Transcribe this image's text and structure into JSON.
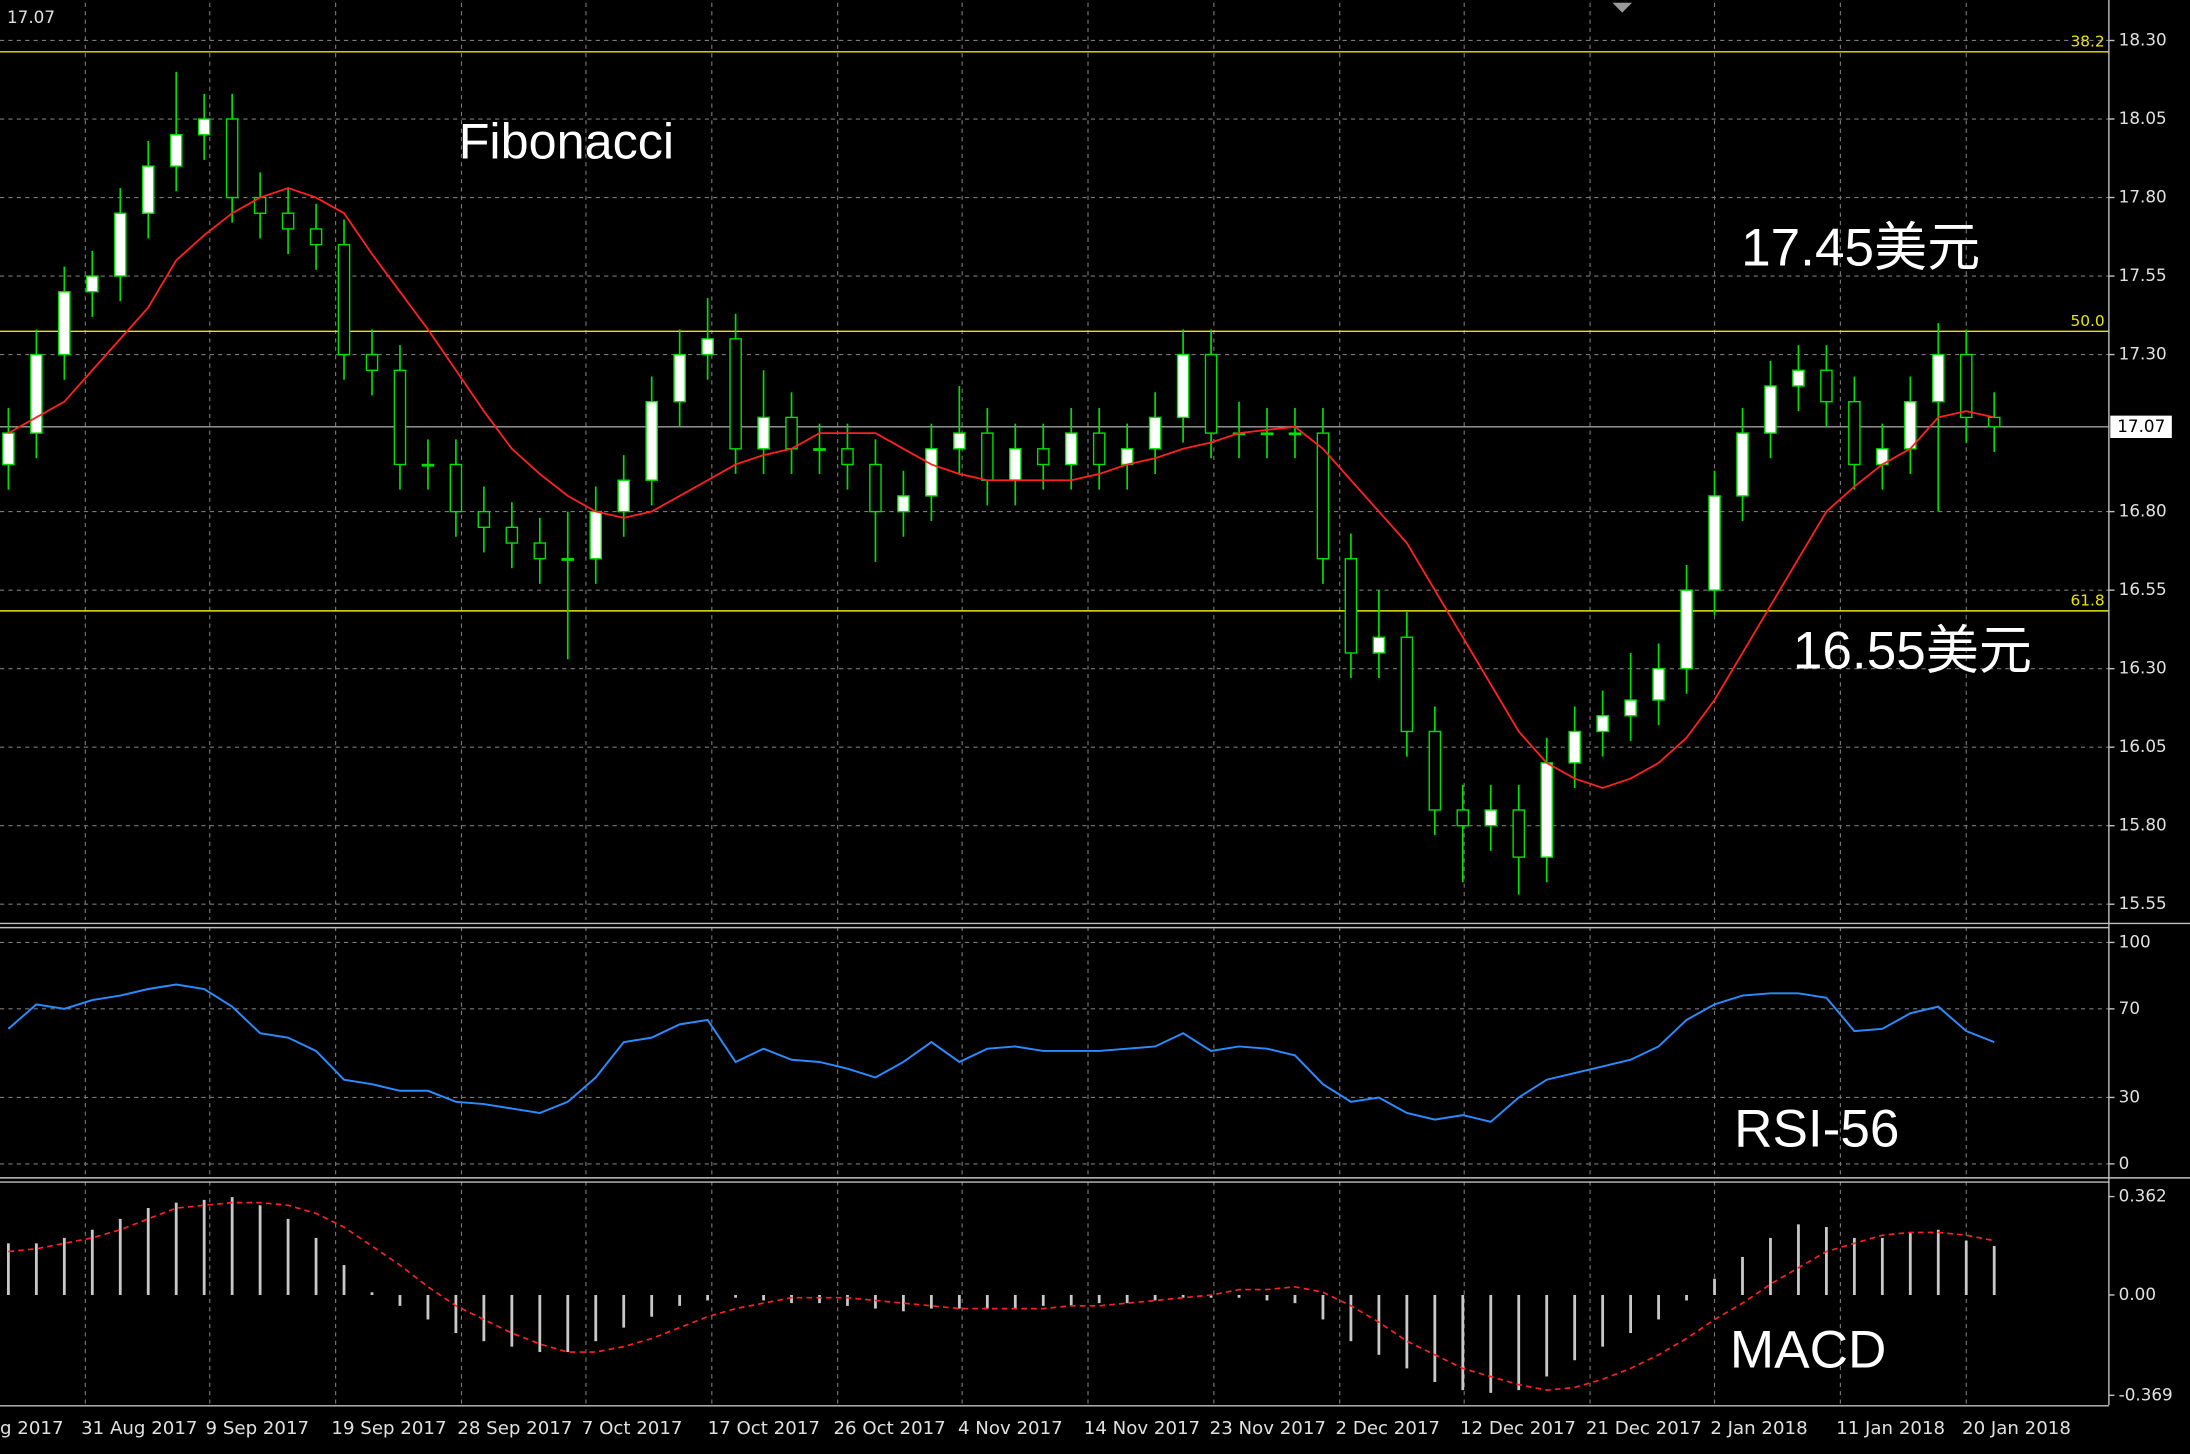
{
  "chart_data": [
    {
      "type": "candlestick",
      "open": [
        16.95,
        17.05,
        17.3,
        17.5,
        17.55,
        17.75,
        17.9,
        18.0,
        18.05,
        17.8,
        17.75,
        17.7,
        17.65,
        17.3,
        17.25,
        16.95,
        16.95,
        16.8,
        16.75,
        16.7,
        16.65,
        16.65,
        16.8,
        16.9,
        17.15,
        17.3,
        17.35,
        17.0,
        17.1,
        17.0,
        17.0,
        16.95,
        16.8,
        16.85,
        17.0,
        17.05,
        16.9,
        17.0,
        16.95,
        17.05,
        16.95,
        17.0,
        17.1,
        17.3,
        17.05,
        17.05,
        17.05,
        17.05,
        16.65,
        16.35,
        16.4,
        16.1,
        15.85,
        15.8,
        15.85,
        15.7,
        16.0,
        16.1,
        16.15,
        16.2,
        16.3,
        16.55,
        16.85,
        17.05,
        17.2,
        17.25,
        17.15,
        16.95,
        17.0,
        17.15,
        17.3,
        17.1
      ],
      "high": [
        17.13,
        17.38,
        17.58,
        17.63,
        17.83,
        17.98,
        18.2,
        18.13,
        18.13,
        17.88,
        17.83,
        17.78,
        17.73,
        17.38,
        17.33,
        17.03,
        17.03,
        16.88,
        16.83,
        16.78,
        16.8,
        16.88,
        16.98,
        17.23,
        17.38,
        17.48,
        17.43,
        17.25,
        17.18,
        17.08,
        17.08,
        17.03,
        16.93,
        17.08,
        17.2,
        17.13,
        17.08,
        17.08,
        17.13,
        17.13,
        17.08,
        17.18,
        17.38,
        17.38,
        17.15,
        17.13,
        17.13,
        17.13,
        16.73,
        16.55,
        16.48,
        16.18,
        15.93,
        15.93,
        15.93,
        16.08,
        16.18,
        16.23,
        16.35,
        16.38,
        16.63,
        16.93,
        17.13,
        17.28,
        17.33,
        17.33,
        17.23,
        17.08,
        17.23,
        17.4,
        17.38,
        17.18
      ],
      "low": [
        16.87,
        16.97,
        17.22,
        17.42,
        17.47,
        17.67,
        17.82,
        17.92,
        17.72,
        17.67,
        17.62,
        17.57,
        17.22,
        17.17,
        16.87,
        16.87,
        16.72,
        16.67,
        16.62,
        16.57,
        16.33,
        16.57,
        16.72,
        16.82,
        17.07,
        17.22,
        16.92,
        16.92,
        16.92,
        16.92,
        16.87,
        16.64,
        16.72,
        16.77,
        16.92,
        16.82,
        16.82,
        16.87,
        16.87,
        16.87,
        16.87,
        16.92,
        17.02,
        16.97,
        16.97,
        16.97,
        16.97,
        16.57,
        16.27,
        16.27,
        16.02,
        15.77,
        15.62,
        15.72,
        15.58,
        15.62,
        15.92,
        16.02,
        16.07,
        16.12,
        16.22,
        16.47,
        16.77,
        16.97,
        17.12,
        17.07,
        16.87,
        16.87,
        16.92,
        16.8,
        17.02,
        16.99
      ],
      "close": [
        17.05,
        17.3,
        17.5,
        17.55,
        17.75,
        17.9,
        18.0,
        18.05,
        17.8,
        17.75,
        17.7,
        17.65,
        17.3,
        17.25,
        16.95,
        16.95,
        16.8,
        16.75,
        16.7,
        16.65,
        16.65,
        16.8,
        16.9,
        17.15,
        17.3,
        17.35,
        17.0,
        17.1,
        17.0,
        17.0,
        16.95,
        16.8,
        16.85,
        17.0,
        17.05,
        16.9,
        17.0,
        16.95,
        17.05,
        16.95,
        17.0,
        17.1,
        17.3,
        17.05,
        17.05,
        17.05,
        17.05,
        16.65,
        16.35,
        16.4,
        16.1,
        15.85,
        15.8,
        15.85,
        15.7,
        16.0,
        16.1,
        16.15,
        16.2,
        16.3,
        16.55,
        16.85,
        17.05,
        17.2,
        17.25,
        17.15,
        16.95,
        17.0,
        17.15,
        17.3,
        17.1,
        17.07
      ],
      "up_color": "#ffffff",
      "down_color": "#000000",
      "wick_color": "#00e000",
      "ma": {
        "color": "#ff2020",
        "values": [
          17.05,
          17.1,
          17.15,
          17.25,
          17.35,
          17.45,
          17.6,
          17.68,
          17.75,
          17.8,
          17.83,
          17.8,
          17.75,
          17.62,
          17.5,
          17.38,
          17.25,
          17.12,
          17.0,
          16.92,
          16.85,
          16.8,
          16.78,
          16.8,
          16.85,
          16.9,
          16.95,
          16.98,
          17.0,
          17.05,
          17.05,
          17.05,
          17.0,
          16.95,
          16.92,
          16.9,
          16.9,
          16.9,
          16.9,
          16.92,
          16.95,
          16.97,
          17.0,
          17.02,
          17.05,
          17.06,
          17.07,
          17.0,
          16.9,
          16.8,
          16.7,
          16.55,
          16.4,
          16.25,
          16.1,
          16.0,
          15.95,
          15.92,
          15.95,
          16.0,
          16.08,
          16.2,
          16.35,
          16.5,
          16.65,
          16.8,
          16.88,
          16.95,
          17.0,
          17.1,
          17.12,
          17.1
        ]
      },
      "ylim": [
        15.5,
        18.42
      ],
      "yticks": [
        {
          "value": 18.3,
          "label": "18.30"
        },
        18.05,
        {
          "value": 17.8,
          "label": "17.80"
        },
        17.55,
        {
          "value": 17.3,
          "label": "17.30"
        },
        {
          "value": 16.8,
          "label": "16.80"
        },
        16.55,
        {
          "value": 16.3,
          "label": "16.30"
        },
        16.05,
        {
          "value": 15.8,
          "label": "15.80"
        },
        15.55
      ],
      "grid": true,
      "fib_color": "#e6e600",
      "fib_levels": [
        {
          "value": 18.264,
          "label": "38.2"
        },
        {
          "value": 17.374,
          "label": "50.0"
        },
        {
          "value": 16.484,
          "label": "61.8"
        }
      ],
      "current_price": 17.07,
      "annotations": [
        "Fibonacci",
        "17.45美元",
        "16.55美元"
      ]
    },
    {
      "type": "line",
      "title": "RSI-56",
      "series": [
        {
          "color": "#2a8cff",
          "values": [
            61,
            72,
            70,
            74,
            76,
            79,
            81,
            79,
            71,
            59,
            57,
            51,
            38,
            36,
            33,
            33,
            28,
            27,
            25,
            23,
            28,
            39,
            55,
            57,
            63,
            65,
            46,
            52,
            47,
            46,
            43,
            39,
            46,
            55,
            46,
            52,
            53,
            51,
            51,
            51,
            52,
            53,
            59,
            51,
            53,
            52,
            49,
            36,
            28,
            30,
            23,
            20,
            22,
            19,
            30,
            38,
            41,
            44,
            47,
            53,
            65,
            72,
            76,
            77,
            77,
            75,
            60,
            61,
            68,
            71,
            60,
            55
          ]
        }
      ],
      "ylim": [
        -6,
        107
      ],
      "yticks": [
        100,
        70,
        30,
        0
      ],
      "grid": true
    },
    {
      "type": "macd",
      "title": "MACD",
      "histogram": {
        "color": "#c8c8c8",
        "values": [
          0.19,
          0.19,
          0.21,
          0.24,
          0.28,
          0.32,
          0.34,
          0.35,
          0.36,
          0.33,
          0.28,
          0.21,
          0.11,
          0.01,
          -0.04,
          -0.09,
          -0.14,
          -0.17,
          -0.19,
          -0.21,
          -0.21,
          -0.17,
          -0.12,
          -0.08,
          -0.04,
          -0.02,
          -0.01,
          -0.02,
          -0.03,
          -0.03,
          -0.04,
          -0.05,
          -0.06,
          -0.05,
          -0.05,
          -0.05,
          -0.05,
          -0.04,
          -0.04,
          -0.03,
          -0.03,
          -0.02,
          -0.01,
          -0.01,
          -0.01,
          -0.02,
          -0.03,
          -0.09,
          -0.17,
          -0.22,
          -0.27,
          -0.32,
          -0.35,
          -0.36,
          -0.35,
          -0.3,
          -0.24,
          -0.19,
          -0.14,
          -0.09,
          -0.02,
          0.06,
          0.14,
          0.21,
          0.26,
          0.25,
          0.21,
          0.21,
          0.23,
          0.24,
          0.2,
          0.18
        ]
      },
      "signal": {
        "color": "#ff2020",
        "values": [
          0.16,
          0.17,
          0.19,
          0.21,
          0.24,
          0.28,
          0.32,
          0.33,
          0.34,
          0.34,
          0.33,
          0.3,
          0.25,
          0.18,
          0.11,
          0.03,
          -0.04,
          -0.09,
          -0.14,
          -0.18,
          -0.21,
          -0.21,
          -0.19,
          -0.16,
          -0.12,
          -0.08,
          -0.05,
          -0.03,
          -0.01,
          -0.01,
          -0.01,
          -0.02,
          -0.03,
          -0.04,
          -0.05,
          -0.05,
          -0.05,
          -0.05,
          -0.04,
          -0.04,
          -0.03,
          -0.02,
          -0.01,
          0.0,
          0.02,
          0.02,
          0.03,
          0.01,
          -0.04,
          -0.1,
          -0.17,
          -0.22,
          -0.27,
          -0.3,
          -0.33,
          -0.35,
          -0.34,
          -0.31,
          -0.27,
          -0.22,
          -0.16,
          -0.09,
          -0.03,
          0.04,
          0.1,
          0.16,
          0.19,
          0.22,
          0.23,
          0.23,
          0.22,
          0.2
        ]
      },
      "ylim": [
        -0.405,
        0.418
      ],
      "yticks": [
        0.362,
        {
          "value": 0,
          "label": "0.00"
        },
        -0.369
      ],
      "grid": false,
      "xlim": [
        -0.3,
        75.1
      ],
      "xticks": [
        {
          "value": -1.75,
          "label": "g 2017"
        },
        {
          "value": 2.75,
          "label": "31 Aug 2017"
        },
        {
          "value": 7.2,
          "label": "9 Sep 2017"
        },
        {
          "value": 11.7,
          "label": "19 Sep 2017"
        },
        {
          "value": 16.2,
          "label": "28 Sep 2017"
        },
        {
          "value": 20.65,
          "label": "7 Oct 2017"
        },
        {
          "value": 25.15,
          "label": "17 Oct 2017"
        },
        {
          "value": 29.65,
          "label": "26 Oct 2017"
        },
        {
          "value": 34.1,
          "label": "4 Nov 2017"
        },
        {
          "value": 38.6,
          "label": "14 Nov 2017"
        },
        {
          "value": 43.1,
          "label": "23 Nov 2017"
        },
        {
          "value": 47.6,
          "label": "2 Dec 2017"
        },
        {
          "value": 52.05,
          "label": "12 Dec 2017"
        },
        {
          "value": 56.55,
          "label": "21 Dec 2017"
        },
        {
          "value": 61,
          "label": "2 Jan 2018"
        },
        {
          "value": 65.5,
          "label": "11 Jan 2018"
        },
        {
          "value": 70,
          "label": "20 Jan 2018"
        }
      ]
    }
  ]
}
